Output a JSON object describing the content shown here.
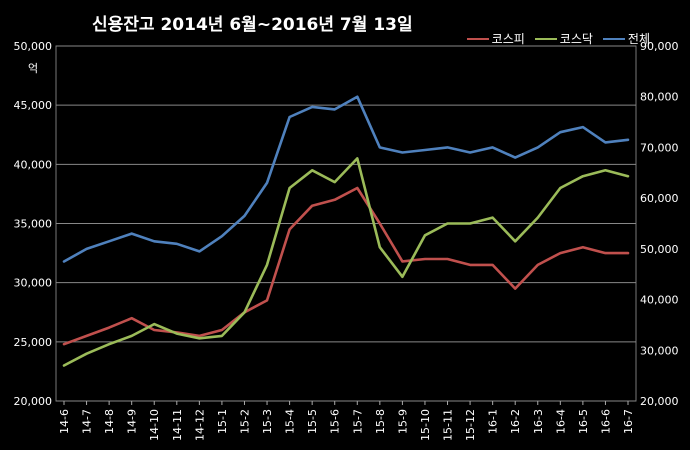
{
  "chart_data": {
    "type": "line",
    "title": "신용잔고 2014년 6월~2016년 7월 13일",
    "unit_label": "억",
    "left_axis": {
      "ticks": [
        "20,000",
        "25,000",
        "30,000",
        "35,000",
        "40,000",
        "45,000",
        "50,000"
      ],
      "ylim": [
        20000,
        50000
      ]
    },
    "right_axis": {
      "ticks": [
        "20,000",
        "30,000",
        "40,000",
        "50,000",
        "60,000",
        "70,000",
        "80,000",
        "90,000"
      ],
      "ylim": [
        20000,
        90000
      ]
    },
    "grid": true,
    "legend_position": "top-right",
    "categories": [
      "14-6",
      "14-7",
      "14-8",
      "14-9",
      "14-10",
      "14-11",
      "14-12",
      "15-1",
      "15-2",
      "15-3",
      "15-4",
      "15-5",
      "15-6",
      "15-7",
      "15-8",
      "15-9",
      "15-10",
      "15-11",
      "15-12",
      "16-1",
      "16-2",
      "16-3",
      "16-4",
      "16-5",
      "16-6",
      "16-7"
    ],
    "series": [
      {
        "name": "코스피",
        "color": "#c0504d",
        "axis": "left",
        "values": [
          24800,
          25500,
          26200,
          27000,
          26000,
          25800,
          25500,
          26000,
          27500,
          28500,
          34500,
          36500,
          37000,
          38000,
          35000,
          31800,
          32000,
          32000,
          31500,
          31500,
          29500,
          31500,
          32500,
          33000,
          32500,
          32500
        ]
      },
      {
        "name": "코스닥",
        "color": "#9bbb59",
        "axis": "left",
        "values": [
          23000,
          24000,
          24800,
          25500,
          26500,
          25700,
          25300,
          25500,
          27500,
          31500,
          38000,
          39500,
          38500,
          40500,
          33000,
          30500,
          34000,
          35000,
          35000,
          35500,
          33500,
          35500,
          38000,
          39000,
          39500,
          39000
        ]
      },
      {
        "name": "전체",
        "color": "#4f81bd",
        "axis": "right",
        "values": [
          47500,
          50000,
          51500,
          53000,
          51500,
          51000,
          49500,
          52500,
          56500,
          63000,
          76000,
          78000,
          77500,
          80000,
          70000,
          69000,
          69500,
          70000,
          69000,
          70000,
          68000,
          70000,
          73000,
          74000,
          71000,
          71500
        ]
      }
    ]
  }
}
